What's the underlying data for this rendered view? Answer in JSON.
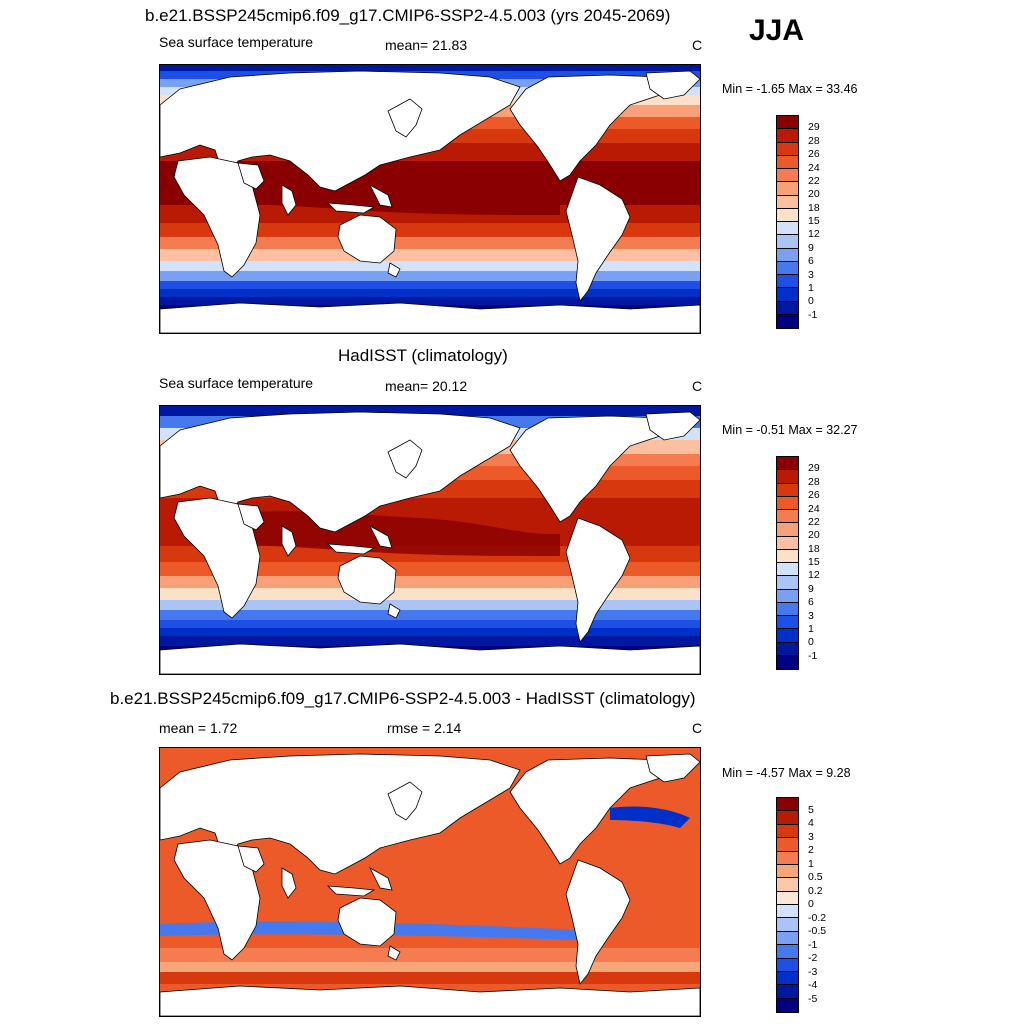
{
  "season": "JJA",
  "palettes": {
    "sst": [
      "#000080",
      "#0018a0",
      "#0030c8",
      "#1e50e6",
      "#4678ee",
      "#7aa0f2",
      "#aac4f6",
      "#d2e2fa",
      "#fce0c8",
      "#fcc0a0",
      "#f8a078",
      "#f47c50",
      "#ec5a2a",
      "#d8380e",
      "#b81a04",
      "#8a0000"
    ],
    "diff": [
      "#000080",
      "#0018a0",
      "#0030c8",
      "#1e50e6",
      "#4678ee",
      "#7aa0f2",
      "#aac4f6",
      "#d2e2fa",
      "#fce6d6",
      "#fcc8aa",
      "#f8a678",
      "#f47c50",
      "#ec5a2a",
      "#d8380e",
      "#b81a04",
      "#8a0000"
    ],
    "land": "#ffffff"
  },
  "panels": [
    {
      "title": "b.e21.BSSP245cmip6.f09_g17.CMIP6-SSP2-4.5.003 (yrs 2045-2069)",
      "left_label": "Sea surface temperature",
      "center_label": "mean=  21.83",
      "units": "C",
      "minmax": "Min =  -1.65 Max =  33.46",
      "colorbar_labels": [
        "29",
        "28",
        "26",
        "24",
        "22",
        "20",
        "18",
        "15",
        "12",
        "9",
        "6",
        "3",
        "1",
        "0",
        "-1"
      ]
    },
    {
      "title": "HadISST (climatology)",
      "left_label": "Sea surface temperature",
      "center_label": "mean=  20.12",
      "units": "C",
      "minmax": "Min =  -0.51 Max =  32.27",
      "colorbar_labels": [
        "29",
        "28",
        "26",
        "24",
        "22",
        "20",
        "18",
        "15",
        "12",
        "9",
        "6",
        "3",
        "1",
        "0",
        "-1"
      ]
    },
    {
      "title": "b.e21.BSSP245cmip6.f09_g17.CMIP6-SSP2-4.5.003 - HadISST (climatology)",
      "left_label": "mean =   1.72",
      "center_label": "rmse =   2.14",
      "units": "C",
      "minmax": "Min =  -4.57 Max =   9.28",
      "colorbar_labels": [
        "5",
        "4",
        "3",
        "2",
        "1",
        "0.5",
        "0.2",
        "0",
        "-0.2",
        "-0.5",
        "-1",
        "-2",
        "-3",
        "-4",
        "-5"
      ]
    }
  ]
}
